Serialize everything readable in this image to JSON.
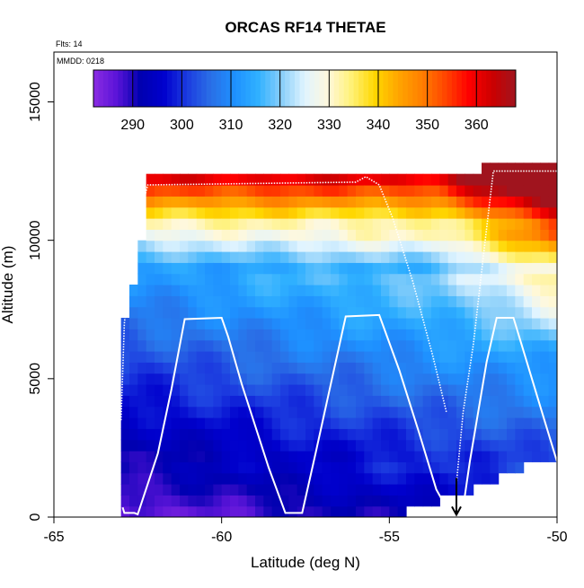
{
  "chart_data": {
    "type": "heatmap",
    "title": "ORCAS RF14 THETAE",
    "flights_note": "Flts: 14",
    "mmdd_note": "MMDD: 0218",
    "xlabel": "Latitude (deg N)",
    "ylabel": "Altitude (m)",
    "xlim": [
      -65,
      -50
    ],
    "ylim": [
      0,
      16800
    ],
    "x_ticks": [
      -65,
      -60,
      -55,
      -50
    ],
    "x_tick_labels": [
      "-65",
      "-60",
      "-55",
      "-50"
    ],
    "y_ticks": [
      0,
      5000,
      10000,
      15000
    ],
    "y_tick_labels": [
      "0",
      "5000",
      "10000",
      "15000"
    ],
    "colorbar": {
      "min": 282,
      "max": 368,
      "ticks": [
        290,
        300,
        310,
        320,
        330,
        340,
        350,
        360
      ],
      "tick_labels": [
        "290",
        "300",
        "310",
        "320",
        "330",
        "340",
        "350",
        "360"
      ],
      "colors": [
        "#8a2be2",
        "#5a14d8",
        "#0000b0",
        "#0000cd",
        "#1c3ce0",
        "#2a6fe6",
        "#1e90ff",
        "#2fb0ff",
        "#87cefa",
        "#e0f4ff",
        "#fff8dc",
        "#fff176",
        "#ffd700",
        "#ffa500",
        "#ff7f00",
        "#ff4500",
        "#ff0000",
        "#cc0000",
        "#a0141e"
      ]
    },
    "field_extent": {
      "lat_min": -63.0,
      "lat_max": -50.0,
      "top_altitude": [
        [
          -63.0,
          6500
        ],
        [
          -62.8,
          7600
        ],
        [
          -62.5,
          8700
        ],
        [
          -62.3,
          10500
        ],
        [
          -62.1,
          12400
        ],
        [
          -55.0,
          12300
        ],
        [
          -53.0,
          12100
        ],
        [
          -52.0,
          12500
        ],
        [
          -50.0,
          12500
        ]
      ],
      "bottom_altitude": [
        [
          -63.0,
          0
        ],
        [
          -56.0,
          0
        ],
        [
          -54.0,
          500
        ],
        [
          -53.0,
          1000
        ],
        [
          -52.0,
          1500
        ],
        [
          -51.0,
          2000
        ],
        [
          -50.0,
          2200
        ]
      ]
    },
    "flight_track": [
      [
        -62.95,
        350
      ],
      [
        -62.9,
        150
      ],
      [
        -62.6,
        150
      ],
      [
        -62.5,
        100
      ],
      [
        -61.9,
        2300
      ],
      [
        -61.5,
        4600
      ],
      [
        -61.1,
        7150
      ],
      [
        -60.0,
        7200
      ],
      [
        -59.8,
        6500
      ],
      [
        -59.4,
        4800
      ],
      [
        -58.6,
        1800
      ],
      [
        -58.1,
        150
      ],
      [
        -57.6,
        150
      ],
      [
        -57.2,
        2300
      ],
      [
        -56.8,
        4500
      ],
      [
        -56.3,
        7250
      ],
      [
        -55.3,
        7300
      ],
      [
        -54.7,
        5300
      ],
      [
        -54.1,
        3000
      ],
      [
        -53.6,
        1000
      ],
      [
        -53.3,
        350
      ],
      [
        -52.8,
        350
      ],
      [
        -52.6,
        2000
      ],
      [
        -52.1,
        5600
      ],
      [
        -51.8,
        7200
      ],
      [
        -51.3,
        7200
      ],
      [
        -51.0,
        6000
      ],
      [
        -50.5,
        4000
      ],
      [
        -50.0,
        2000
      ]
    ],
    "flight_track_upper": [
      [
        -63.0,
        3500
      ],
      [
        -62.9,
        7000
      ],
      [
        -62.6,
        10200
      ],
      [
        -62.2,
        12000
      ],
      [
        -56.0,
        12100
      ],
      [
        -55.7,
        12300
      ],
      [
        -55.3,
        12000
      ],
      [
        -54.9,
        10800
      ],
      [
        -54.3,
        8500
      ],
      [
        -53.7,
        5800
      ],
      [
        -53.3,
        3800
      ]
    ],
    "flight_track_descent": [
      [
        -53.0,
        1200
      ],
      [
        -52.8,
        3800
      ],
      [
        -52.5,
        6200
      ],
      [
        -52.2,
        9400
      ],
      [
        -51.9,
        12500
      ],
      [
        -50.0,
        12500
      ]
    ],
    "sounding_marker": {
      "lat": -53.0,
      "altitude": 700
    }
  }
}
